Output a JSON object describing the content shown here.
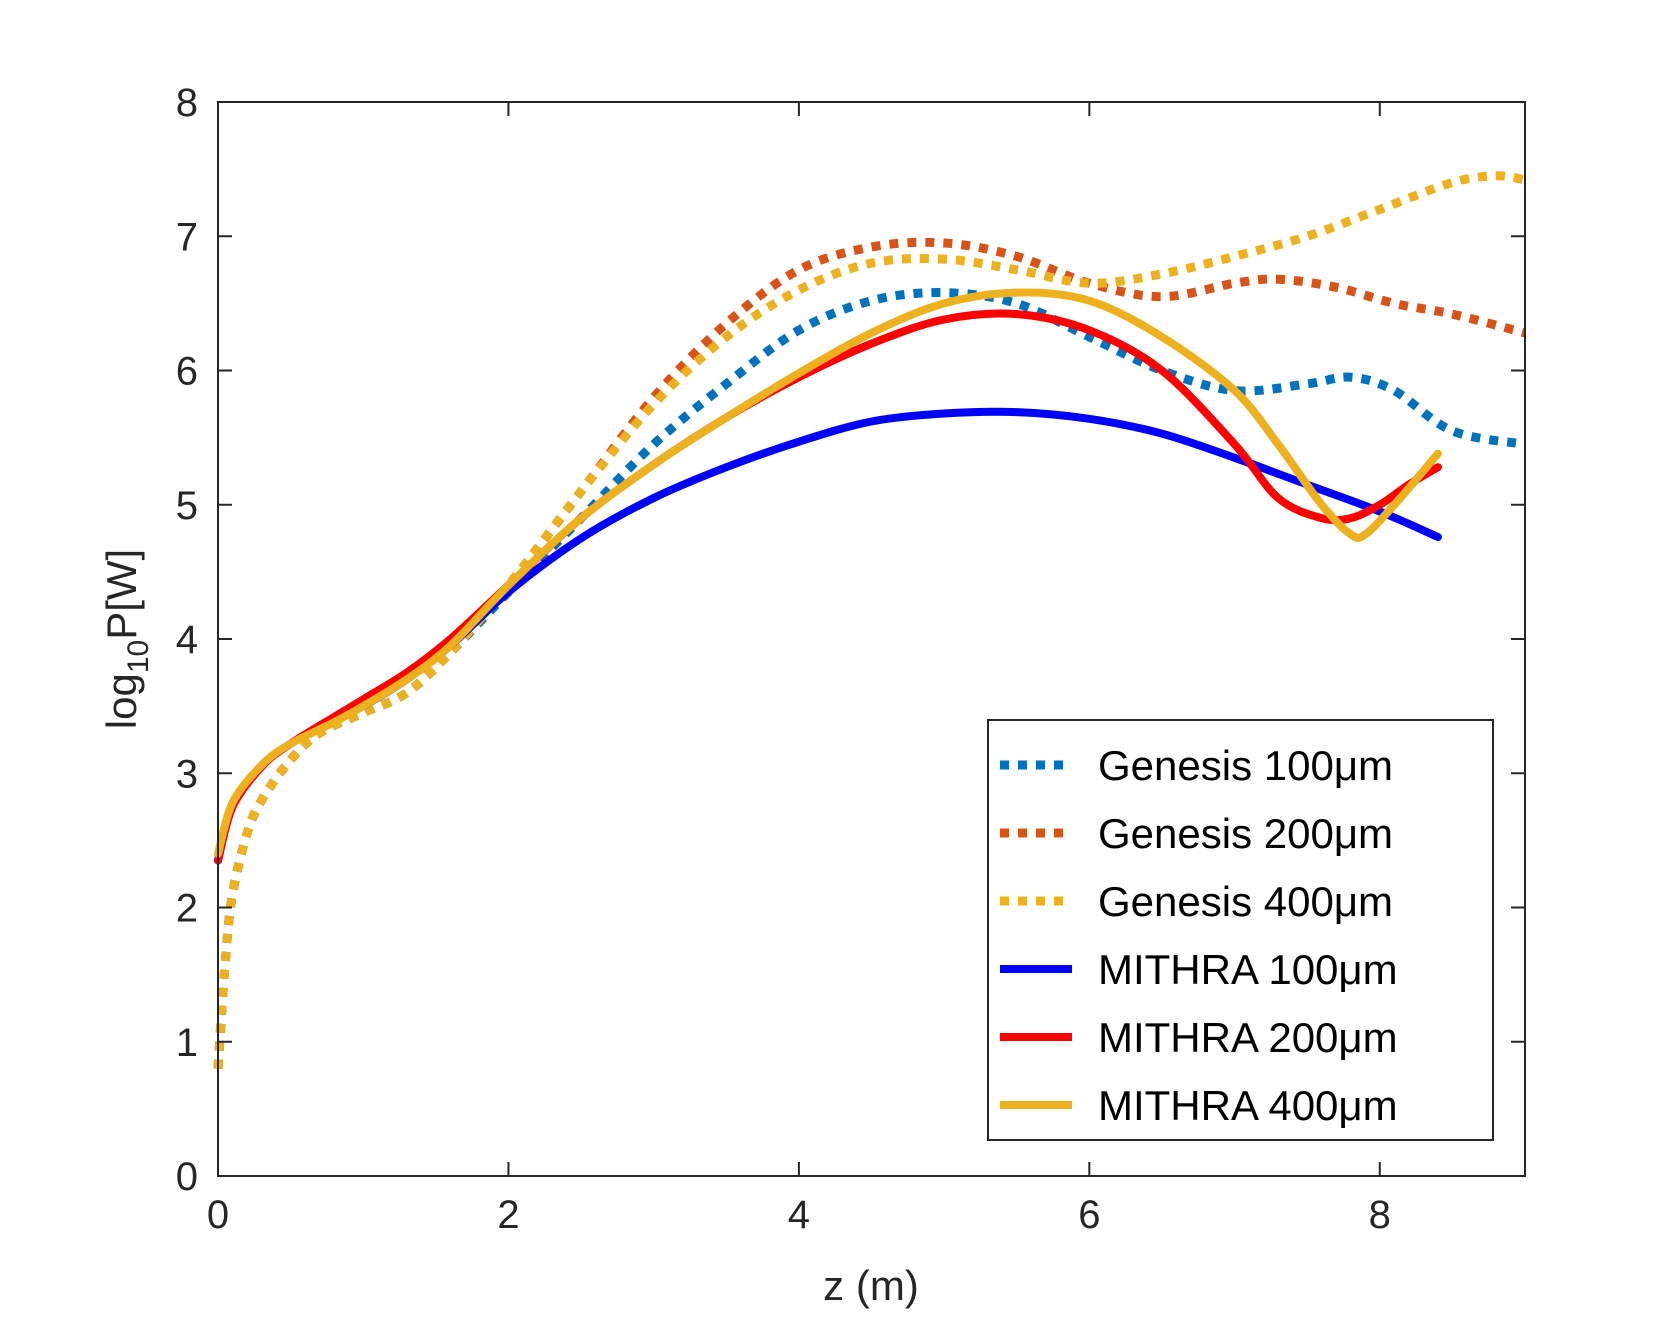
{
  "chart_data": {
    "type": "line",
    "xlabel": "z (m)",
    "ylabel": {
      "prefix": "log",
      "sub": "10",
      "suffix": "P[W]"
    },
    "xlim": [
      0,
      9
    ],
    "ylim": [
      0,
      8
    ],
    "xticks": [
      0,
      2,
      4,
      6,
      8
    ],
    "yticks": [
      0,
      1,
      2,
      3,
      4,
      5,
      6,
      7,
      8
    ],
    "grid": false,
    "legend_position": "bottom-right",
    "series": [
      {
        "name": "Genesis 100μm",
        "style": "dotted",
        "color": "#0072BD",
        "x": [
          0,
          0.05,
          0.1,
          0.2,
          0.3,
          0.5,
          0.7,
          1.0,
          1.3,
          1.6,
          2.0,
          2.5,
          3.0,
          3.5,
          4.0,
          4.5,
          5.0,
          5.5,
          6.0,
          6.5,
          7.0,
          7.5,
          7.8,
          8.1,
          8.5,
          9.0
        ],
        "y": [
          0.8,
          1.6,
          2.1,
          2.55,
          2.8,
          3.1,
          3.3,
          3.45,
          3.6,
          3.9,
          4.35,
          4.9,
          5.45,
          5.9,
          6.3,
          6.52,
          6.58,
          6.5,
          6.25,
          6.0,
          5.85,
          5.9,
          5.95,
          5.85,
          5.55,
          5.45
        ]
      },
      {
        "name": "Genesis 200μm",
        "style": "dotted",
        "color": "#D95319",
        "x": [
          0,
          0.05,
          0.1,
          0.2,
          0.3,
          0.5,
          0.7,
          1.0,
          1.3,
          1.6,
          2.0,
          2.5,
          3.0,
          3.5,
          4.0,
          4.5,
          5.0,
          5.5,
          6.0,
          6.5,
          7.0,
          7.3,
          7.7,
          8.1,
          8.5,
          9.0
        ],
        "y": [
          0.8,
          1.6,
          2.1,
          2.55,
          2.8,
          3.1,
          3.3,
          3.45,
          3.6,
          3.9,
          4.4,
          5.1,
          5.8,
          6.35,
          6.75,
          6.92,
          6.95,
          6.85,
          6.65,
          6.55,
          6.65,
          6.68,
          6.62,
          6.5,
          6.42,
          6.28
        ]
      },
      {
        "name": "Genesis 400μm",
        "style": "dotted",
        "color": "#EDB120",
        "x": [
          0,
          0.05,
          0.1,
          0.2,
          0.3,
          0.5,
          0.7,
          1.0,
          1.3,
          1.6,
          2.0,
          2.5,
          3.0,
          3.5,
          4.0,
          4.5,
          5.0,
          5.5,
          6.0,
          6.5,
          7.0,
          7.5,
          8.0,
          8.5,
          8.8,
          9.0
        ],
        "y": [
          0.8,
          1.6,
          2.1,
          2.55,
          2.8,
          3.1,
          3.3,
          3.45,
          3.6,
          3.9,
          4.4,
          5.1,
          5.75,
          6.25,
          6.6,
          6.8,
          6.83,
          6.75,
          6.65,
          6.72,
          6.85,
          7.0,
          7.2,
          7.4,
          7.45,
          7.42
        ]
      },
      {
        "name": "MITHRA 100μm",
        "style": "solid",
        "color": "#0000FF",
        "x": [
          0,
          0.1,
          0.3,
          0.5,
          0.8,
          1.0,
          1.3,
          1.6,
          2.0,
          2.5,
          3.0,
          3.5,
          4.0,
          4.5,
          5.0,
          5.5,
          6.0,
          6.5,
          7.0,
          7.5,
          8.0,
          8.4
        ],
        "y": [
          2.35,
          2.75,
          3.05,
          3.22,
          3.4,
          3.5,
          3.7,
          3.95,
          4.35,
          4.75,
          5.05,
          5.28,
          5.47,
          5.62,
          5.68,
          5.69,
          5.64,
          5.53,
          5.35,
          5.15,
          4.95,
          4.76
        ]
      },
      {
        "name": "MITHRA 200μm",
        "style": "solid",
        "color": "#FF0000",
        "x": [
          0,
          0.1,
          0.3,
          0.5,
          0.8,
          1.0,
          1.3,
          1.6,
          2.0,
          2.5,
          3.0,
          3.5,
          4.0,
          4.5,
          5.0,
          5.5,
          6.0,
          6.5,
          7.0,
          7.3,
          7.6,
          7.8,
          8.0,
          8.2,
          8.4
        ],
        "y": [
          2.35,
          2.75,
          3.05,
          3.22,
          3.42,
          3.55,
          3.75,
          4.0,
          4.4,
          4.9,
          5.3,
          5.65,
          5.95,
          6.2,
          6.38,
          6.42,
          6.3,
          6.0,
          5.45,
          5.05,
          4.9,
          4.9,
          5.0,
          5.15,
          5.28
        ]
      },
      {
        "name": "MITHRA 400μm",
        "style": "solid",
        "color": "#EDB120",
        "x": [
          0,
          0.1,
          0.3,
          0.5,
          0.8,
          1.0,
          1.3,
          1.6,
          2.0,
          2.5,
          3.0,
          3.5,
          4.0,
          4.5,
          5.0,
          5.5,
          6.0,
          6.5,
          7.0,
          7.3,
          7.6,
          7.8,
          7.9,
          8.1,
          8.4
        ],
        "y": [
          2.4,
          2.78,
          3.06,
          3.22,
          3.38,
          3.5,
          3.7,
          3.95,
          4.4,
          4.9,
          5.3,
          5.65,
          5.98,
          6.28,
          6.5,
          6.58,
          6.52,
          6.25,
          5.85,
          5.45,
          5.0,
          4.78,
          4.78,
          5.0,
          5.38
        ]
      }
    ]
  }
}
